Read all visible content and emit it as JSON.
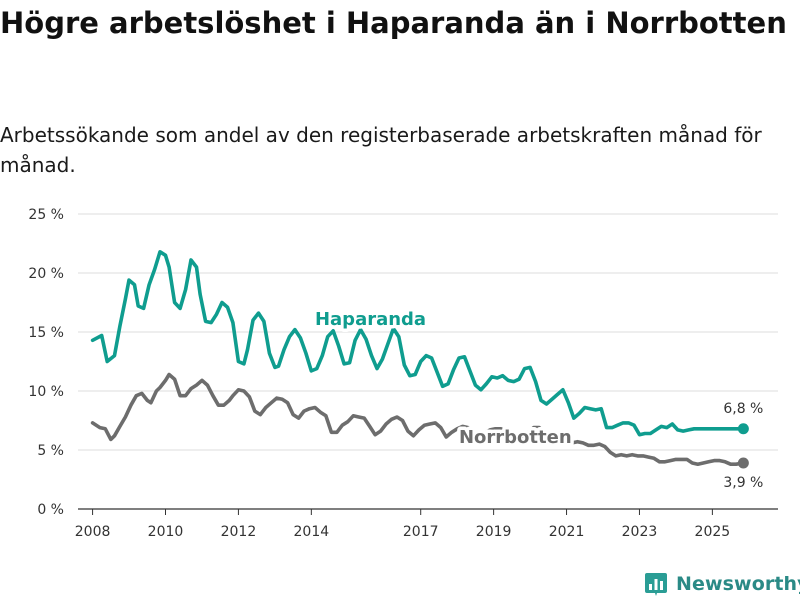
{
  "title": "Högre arbetslöshet i Haparanda än i Norrbotten",
  "subtitle": "Arbetssökande som andel av den registerbaserade arbetskraften månad för månad.",
  "brand": {
    "name": "Newsworthy",
    "color": "#2a9d95"
  },
  "chart_data": {
    "type": "line",
    "title": "Högre arbetslöshet i Haparanda än i Norrbotten",
    "xlabel": "",
    "ylabel": "",
    "xlim": [
      2007.6,
      2026.8
    ],
    "ylim": [
      0,
      25
    ],
    "yticks": [
      0,
      5,
      10,
      15,
      20,
      25
    ],
    "ytick_labels": [
      "0 %",
      "5 %",
      "10 %",
      "15 %",
      "20 %",
      "25 %"
    ],
    "xticks": [
      2008,
      2010,
      2012,
      2014,
      2017,
      2019,
      2021,
      2023,
      2025
    ],
    "xtick_labels": [
      "2008",
      "2010",
      "2012",
      "2014",
      "2017",
      "2019",
      "2021",
      "2023",
      "2025"
    ],
    "grid": true,
    "series": [
      {
        "name": "Haparanda",
        "color": "#0f9d8f",
        "end_label": "6,8 %",
        "x": [
          2008.0,
          2008.25,
          2008.4,
          2008.6,
          2008.75,
          2008.9,
          2009.0,
          2009.15,
          2009.25,
          2009.4,
          2009.55,
          2009.7,
          2009.85,
          2010.0,
          2010.1,
          2010.25,
          2010.4,
          2010.55,
          2010.7,
          2010.85,
          2010.95,
          2011.1,
          2011.25,
          2011.4,
          2011.55,
          2011.7,
          2011.85,
          2012.0,
          2012.15,
          2012.25,
          2012.4,
          2012.55,
          2012.7,
          2012.85,
          2013.0,
          2013.1,
          2013.25,
          2013.4,
          2013.55,
          2013.7,
          2013.85,
          2014.0,
          2014.15,
          2014.3,
          2014.45,
          2014.6,
          2014.75,
          2014.9,
          2015.05,
          2015.2,
          2015.35,
          2015.5,
          2015.65,
          2015.8,
          2015.95,
          2016.1,
          2016.25,
          2016.4,
          2016.55,
          2016.7,
          2016.85,
          2017.0,
          2017.15,
          2017.3,
          2017.45,
          2017.6,
          2017.75,
          2017.9,
          2018.05,
          2018.2,
          2018.35,
          2018.5,
          2018.65,
          2018.8,
          2018.95,
          2019.1,
          2019.25,
          2019.4,
          2019.55,
          2019.7,
          2019.85,
          2020.0,
          2020.15,
          2020.3,
          2020.45,
          2020.6,
          2020.75,
          2020.9,
          2021.05,
          2021.2,
          2021.35,
          2021.5,
          2021.65,
          2021.8,
          2021.95,
          2022.1,
          2022.25,
          2022.4,
          2022.55,
          2022.7,
          2022.85,
          2023.0,
          2023.15,
          2023.3,
          2023.45,
          2023.6,
          2023.75,
          2023.9,
          2024.05,
          2024.2,
          2024.35,
          2024.5,
          2024.65,
          2024.8,
          2024.95,
          2025.1,
          2025.25,
          2025.4,
          2025.55,
          2025.7,
          2025.85
        ],
        "values": [
          14.3,
          14.7,
          12.5,
          13.0,
          15.5,
          17.8,
          19.4,
          19.0,
          17.2,
          17.0,
          19.0,
          20.3,
          21.8,
          21.5,
          20.5,
          17.5,
          17.0,
          18.6,
          21.1,
          20.5,
          18.2,
          15.9,
          15.8,
          16.5,
          17.5,
          17.1,
          15.8,
          12.5,
          12.3,
          13.5,
          16.0,
          16.6,
          15.9,
          13.2,
          12.0,
          12.1,
          13.5,
          14.6,
          15.2,
          14.5,
          13.2,
          11.7,
          11.9,
          13.0,
          14.6,
          15.1,
          13.8,
          12.3,
          12.4,
          14.3,
          15.2,
          14.4,
          13.0,
          11.9,
          12.7,
          14.0,
          15.3,
          14.6,
          12.2,
          11.3,
          11.4,
          12.5,
          13.0,
          12.8,
          11.6,
          10.4,
          10.6,
          11.8,
          12.8,
          12.9,
          11.7,
          10.5,
          10.1,
          10.6,
          11.2,
          11.1,
          11.3,
          10.9,
          10.8,
          11.0,
          11.9,
          12.0,
          10.8,
          9.2,
          8.9,
          9.3,
          9.7,
          10.1,
          9.0,
          7.7,
          8.1,
          8.6,
          8.5,
          8.4,
          8.5,
          6.9,
          6.9,
          7.1,
          7.3,
          7.3,
          7.1,
          6.3,
          6.4,
          6.4,
          6.7,
          7.0,
          6.9,
          7.2,
          6.7,
          6.6,
          6.7,
          6.8,
          6.8,
          6.8,
          6.8,
          6.8,
          6.8,
          6.8,
          6.8,
          6.8,
          6.8
        ]
      },
      {
        "name": "Norrbotten",
        "color": "#6d6d6d",
        "end_label": "3,9 %",
        "x": [
          2008.0,
          2008.2,
          2008.35,
          2008.5,
          2008.6,
          2008.75,
          2008.9,
          2009.05,
          2009.2,
          2009.35,
          2009.5,
          2009.6,
          2009.75,
          2009.85,
          2010.0,
          2010.1,
          2010.25,
          2010.4,
          2010.55,
          2010.7,
          2010.85,
          2011.0,
          2011.15,
          2011.3,
          2011.45,
          2011.6,
          2011.75,
          2011.85,
          2012.0,
          2012.15,
          2012.3,
          2012.45,
          2012.6,
          2012.75,
          2012.9,
          2013.05,
          2013.2,
          2013.35,
          2013.5,
          2013.65,
          2013.8,
          2013.95,
          2014.1,
          2014.25,
          2014.4,
          2014.55,
          2014.7,
          2014.85,
          2015.0,
          2015.15,
          2015.3,
          2015.45,
          2015.6,
          2015.75,
          2015.9,
          2016.05,
          2016.2,
          2016.35,
          2016.5,
          2016.65,
          2016.8,
          2016.95,
          2017.1,
          2017.25,
          2017.4,
          2017.55,
          2017.7,
          2017.85,
          2018.0,
          2018.15,
          2018.3,
          2018.45,
          2018.6,
          2018.75,
          2018.9,
          2019.05,
          2019.2,
          2019.35,
          2019.5,
          2019.65,
          2019.8,
          2019.95,
          2020.1,
          2020.25,
          2020.4,
          2020.55,
          2020.7,
          2020.85,
          2021.0,
          2021.15,
          2021.3,
          2021.45,
          2021.6,
          2021.75,
          2021.9,
          2022.05,
          2022.2,
          2022.35,
          2022.5,
          2022.65,
          2022.8,
          2022.95,
          2023.1,
          2023.25,
          2023.4,
          2023.55,
          2023.7,
          2023.85,
          2024.0,
          2024.15,
          2024.3,
          2024.45,
          2024.6,
          2024.75,
          2024.9,
          2025.05,
          2025.2,
          2025.35,
          2025.5,
          2025.65,
          2025.85
        ],
        "values": [
          7.3,
          6.9,
          6.8,
          5.9,
          6.2,
          7.0,
          7.8,
          8.8,
          9.6,
          9.8,
          9.2,
          9.0,
          10.0,
          10.3,
          10.9,
          11.4,
          11.0,
          9.6,
          9.6,
          10.2,
          10.5,
          10.9,
          10.5,
          9.6,
          8.8,
          8.8,
          9.2,
          9.6,
          10.1,
          10.0,
          9.5,
          8.3,
          8.0,
          8.6,
          9.0,
          9.4,
          9.3,
          9.0,
          8.0,
          7.7,
          8.3,
          8.5,
          8.6,
          8.2,
          7.9,
          6.5,
          6.5,
          7.1,
          7.4,
          7.9,
          7.8,
          7.7,
          7.0,
          6.3,
          6.6,
          7.2,
          7.6,
          7.8,
          7.5,
          6.6,
          6.2,
          6.7,
          7.1,
          7.2,
          7.3,
          6.9,
          6.1,
          6.5,
          6.8,
          7.0,
          6.9,
          6.3,
          6.2,
          6.4,
          6.7,
          6.8,
          6.8,
          6.6,
          6.2,
          6.0,
          6.2,
          6.5,
          6.9,
          6.9,
          6.5,
          6.1,
          5.8,
          5.7,
          5.6,
          5.6,
          5.7,
          5.6,
          5.4,
          5.4,
          5.5,
          5.3,
          4.8,
          4.5,
          4.6,
          4.5,
          4.6,
          4.5,
          4.5,
          4.4,
          4.3,
          4.0,
          4.0,
          4.1,
          4.2,
          4.2,
          4.2,
          3.9,
          3.8,
          3.9,
          4.0,
          4.1,
          4.1,
          4.0,
          3.8,
          3.8,
          3.9
        ]
      }
    ],
    "annotations": [
      {
        "text": "Haparanda",
        "series": "Haparanda"
      },
      {
        "text": "Norrbotten",
        "series": "Norrbotten"
      }
    ]
  }
}
